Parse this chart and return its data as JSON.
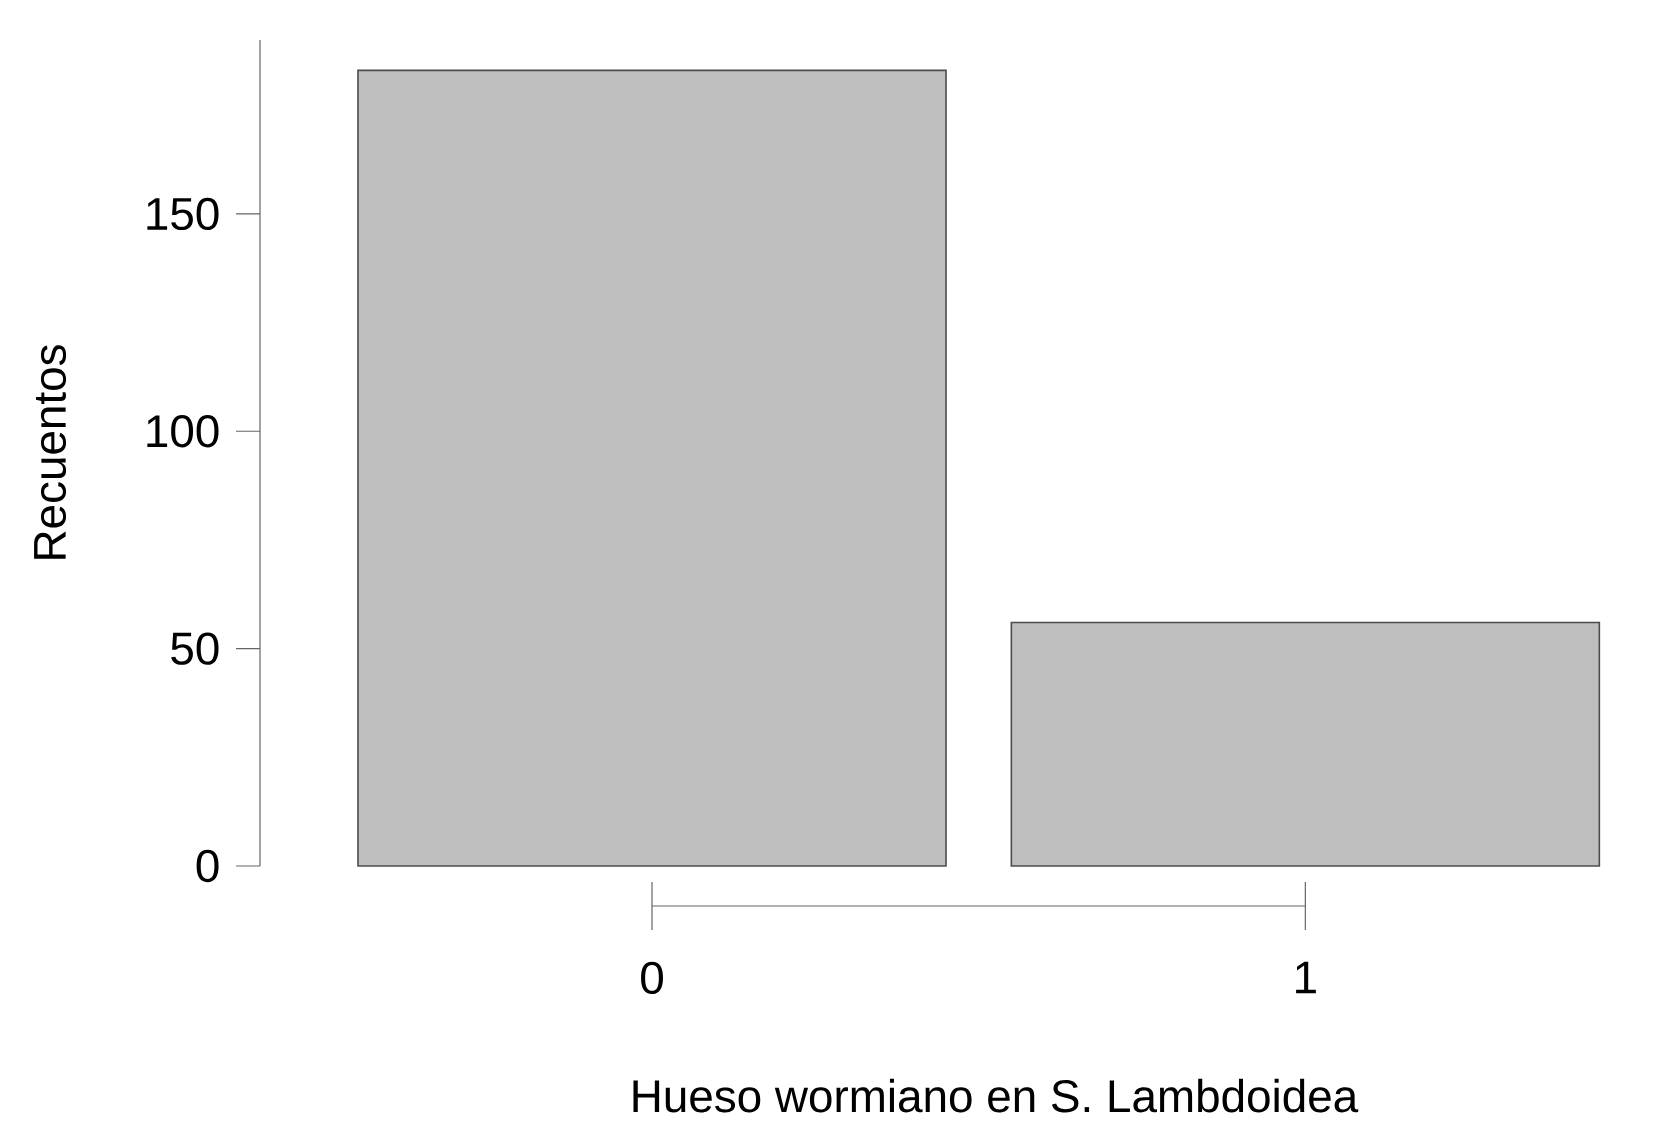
{
  "chart_data": {
    "type": "bar",
    "xlabel": "Hueso wormiano en S. Lambdoidea",
    "ylabel": "Recuentos",
    "categories": [
      "0",
      "1"
    ],
    "values": [
      183,
      56
    ],
    "color": "#bebebe",
    "ylim": [
      0,
      190
    ],
    "yticks": [
      0,
      50,
      100,
      150
    ]
  }
}
